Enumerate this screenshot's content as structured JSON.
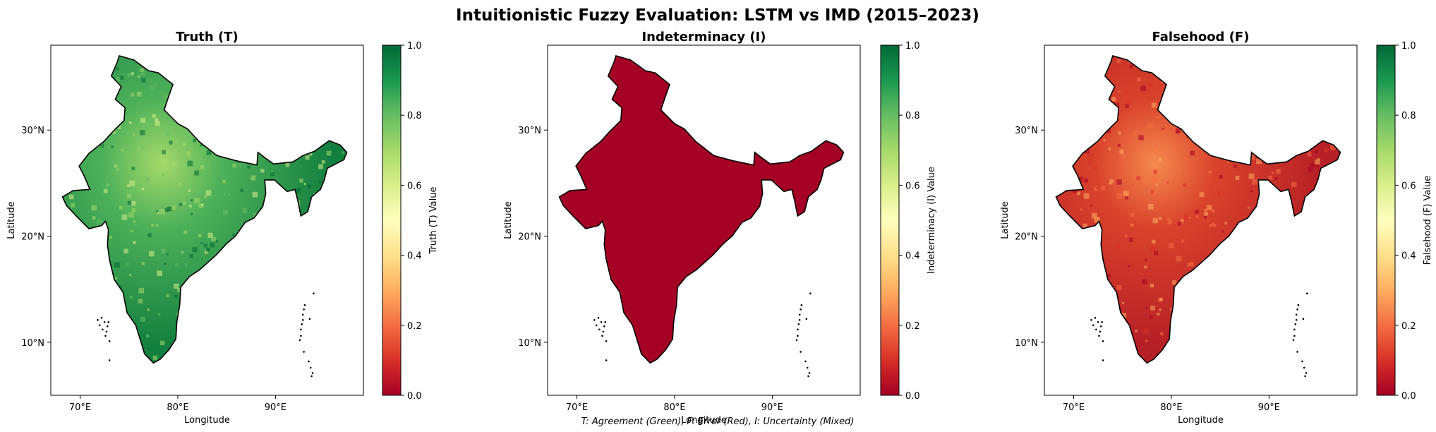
{
  "figure": {
    "suptitle": "Intuitionistic Fuzzy Evaluation: LSTM vs IMD (2015–2023)",
    "footnote": "T: Agreement (Green), F: Error (Red), I: Uncertainty (Mixed)"
  },
  "chart_data": [
    {
      "type": "heatmap",
      "title": "Truth (T)",
      "xlabel": "Longitude",
      "ylabel": "Latitude",
      "xticks": [
        "70°E",
        "80°E",
        "90°E"
      ],
      "yticks": [
        "10°N",
        "20°N",
        "30°N"
      ],
      "xlim": [
        67,
        99
      ],
      "ylim": [
        5,
        38
      ],
      "colorbar": {
        "label": "Truth (T) Value",
        "colormap": "RdYlGn",
        "range": [
          0.0,
          1.0
        ],
        "ticks": [
          "0.0",
          "0.2",
          "0.4",
          "0.6",
          "0.8",
          "1.0"
        ]
      },
      "field_summary": {
        "typical_value": 0.85,
        "low_value_region": "northwest / Rajasthan (~0.6–0.7)"
      },
      "grid": false,
      "legend": "none"
    },
    {
      "type": "heatmap",
      "title": "Indeterminacy (I)",
      "xlabel": "Longitude",
      "ylabel": "Latitude",
      "xticks": [
        "70°E",
        "80°E",
        "90°E"
      ],
      "yticks": [
        "10°N",
        "20°N",
        "30°N"
      ],
      "xlim": [
        67,
        99
      ],
      "ylim": [
        5,
        38
      ],
      "colorbar": {
        "label": "Indeterminacy (I) Value",
        "colormap": "RdYlGn",
        "range": [
          0.0,
          1.0
        ],
        "ticks": [
          "0.0",
          "0.2",
          "0.4",
          "0.6",
          "0.8",
          "1.0"
        ]
      },
      "field_summary": {
        "typical_value": 0.0,
        "low_value_region": "uniform (~0.0 everywhere)"
      },
      "grid": false,
      "legend": "none"
    },
    {
      "type": "heatmap",
      "title": "Falsehood (F)",
      "xlabel": "Longitude",
      "ylabel": "Latitude",
      "xticks": [
        "70°E",
        "80°E",
        "90°E"
      ],
      "yticks": [
        "10°N",
        "20°N",
        "30°N"
      ],
      "xlim": [
        67,
        99
      ],
      "ylim": [
        5,
        38
      ],
      "colorbar": {
        "label": "Falsehood (F) Value",
        "colormap": "RdYlGn",
        "range": [
          0.0,
          1.0
        ],
        "ticks": [
          "0.0",
          "0.2",
          "0.4",
          "0.6",
          "0.8",
          "1.0"
        ]
      },
      "field_summary": {
        "typical_value": 0.12,
        "low_value_region": "northwest / Rajasthan (~0.3)"
      },
      "grid": false,
      "legend": "none"
    }
  ],
  "colors": {
    "truth_fill": "#1e8a45",
    "truth_light": "#a6d96a",
    "indeterminacy_fill": "#a50026",
    "falsehood_fill": "#c5301f",
    "falsehood_light": "#f46d43",
    "outline": "#000000"
  }
}
